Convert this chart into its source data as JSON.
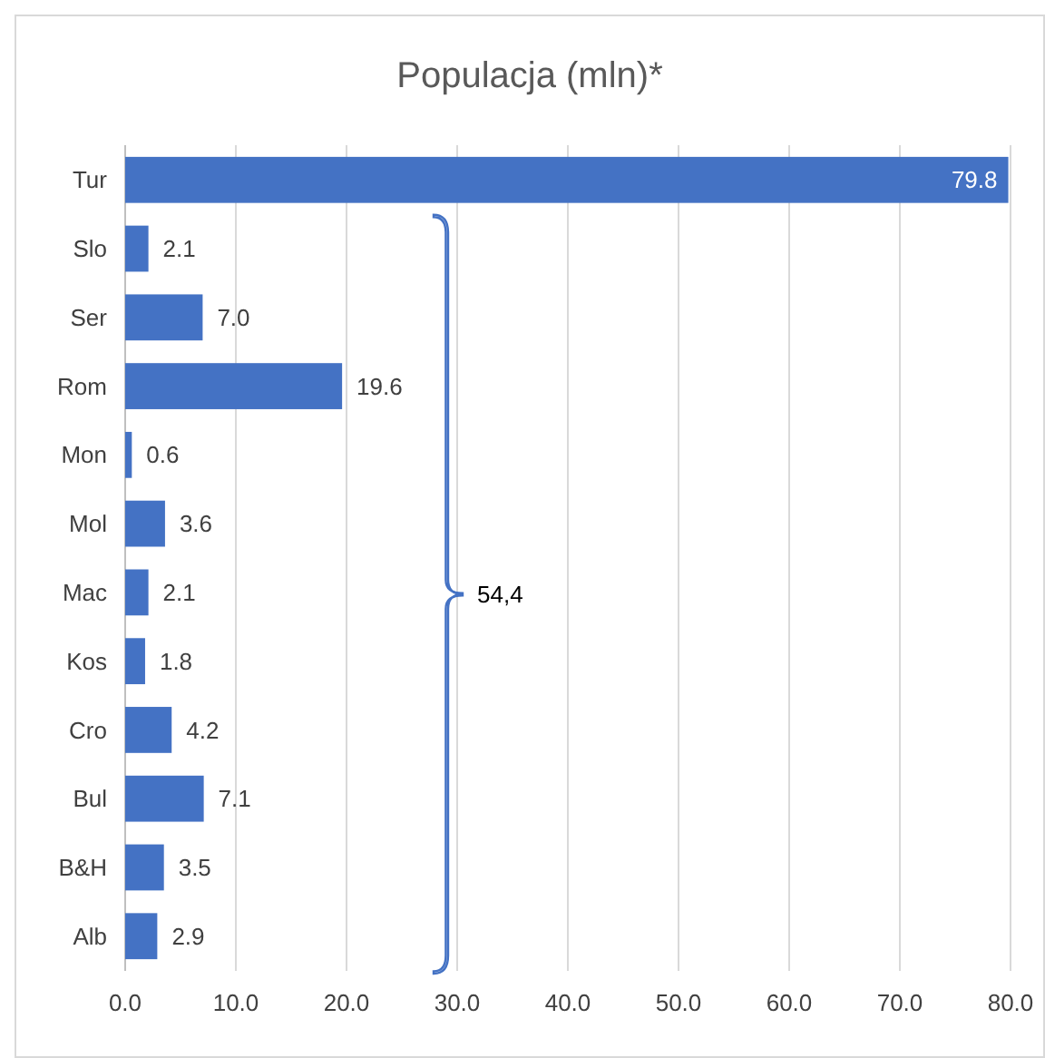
{
  "chart_data": {
    "type": "bar",
    "orientation": "horizontal",
    "title": "Populacja (mln)*",
    "categories": [
      "Tur",
      "Slo",
      "Ser",
      "Rom",
      "Mon",
      "Mol",
      "Mac",
      "Kos",
      "Cro",
      "Bul",
      "B&H",
      "Alb"
    ],
    "values": [
      79.8,
      2.1,
      7.0,
      19.6,
      0.6,
      3.6,
      2.1,
      1.8,
      4.2,
      7.1,
      3.5,
      2.9
    ],
    "value_labels": [
      "79.8",
      "2.1",
      "7.0",
      "19.6",
      "0.6",
      "3.6",
      "2.1",
      "1.8",
      "4.2",
      "7.1",
      "3.5",
      "2.9"
    ],
    "color": "#4472c4",
    "xlim": [
      0,
      80
    ],
    "xticks": [
      {
        "value": 0,
        "label": "0.0"
      },
      {
        "value": 10,
        "label": "10.0"
      },
      {
        "value": 20,
        "label": "20.0"
      },
      {
        "value": 30,
        "label": "30.0"
      },
      {
        "value": 40,
        "label": "40.0"
      },
      {
        "value": 50,
        "label": "50.0"
      },
      {
        "value": 60,
        "label": "60.0"
      },
      {
        "value": 70,
        "label": "70.0"
      },
      {
        "value": 80,
        "label": "80.0"
      }
    ],
    "grid": "x",
    "annotations": [
      "54,4"
    ]
  }
}
